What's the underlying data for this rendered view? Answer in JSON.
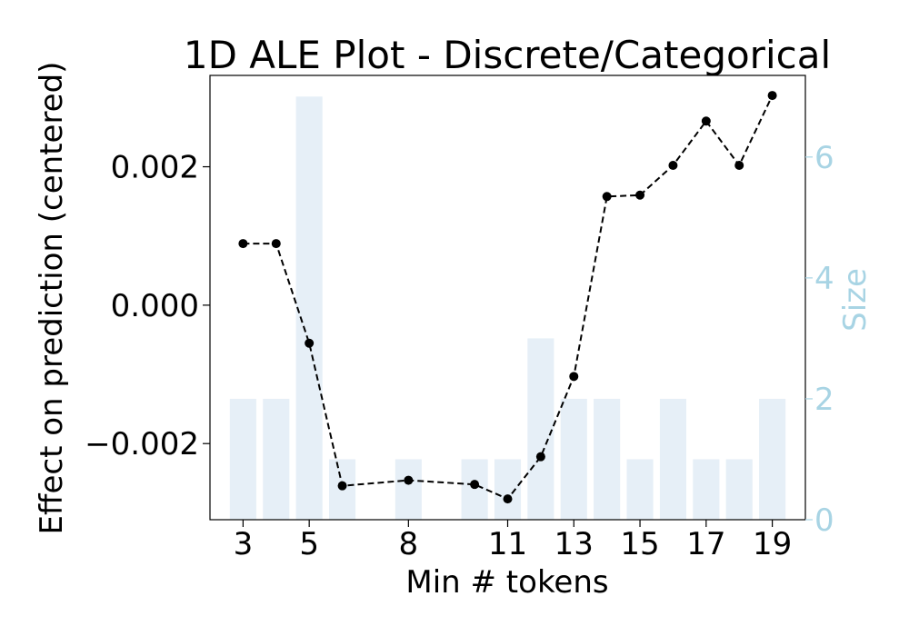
{
  "chart_data": {
    "type": "line",
    "title": "1D ALE Plot - Discrete/Categorical",
    "xlabel": "Min # tokens",
    "ylabel": "Effect on prediction (centered)",
    "y2label": "Size",
    "x_ticks": [
      "3",
      "5",
      "8",
      "11",
      "13",
      "15",
      "17",
      "19"
    ],
    "y_ticks": [
      "0.002",
      "0.000",
      "−0.002"
    ],
    "y2_ticks": [
      "0",
      "2",
      "4",
      "6"
    ],
    "ylim": [
      -0.0031,
      0.00332
    ],
    "y2lim": [
      0,
      7.35
    ],
    "grid": false,
    "colors": {
      "line": "#000000",
      "bars": "#e6eff7",
      "right_axis": "#a8d4e4"
    },
    "series": [
      {
        "type": "line",
        "style": "dashed",
        "marker": "circle",
        "x": [
          3,
          4,
          5,
          6,
          8,
          10,
          11,
          12,
          13,
          14,
          15,
          16,
          17,
          18,
          19
        ],
        "y": [
          0.00089,
          0.00089,
          -0.00055,
          -0.00261,
          -0.00253,
          -0.00259,
          -0.0028,
          -0.00219,
          -0.00103,
          0.00157,
          0.00159,
          0.00202,
          0.00266,
          0.00202,
          0.00303
        ]
      },
      {
        "type": "bar",
        "axis": "right",
        "x": [
          3,
          4,
          5,
          6,
          8,
          10,
          11,
          12,
          13,
          14,
          15,
          16,
          17,
          18,
          19
        ],
        "values": [
          2,
          2,
          7,
          1,
          1,
          1,
          1,
          3,
          2,
          2,
          1,
          2,
          1,
          1,
          2
        ]
      }
    ]
  }
}
